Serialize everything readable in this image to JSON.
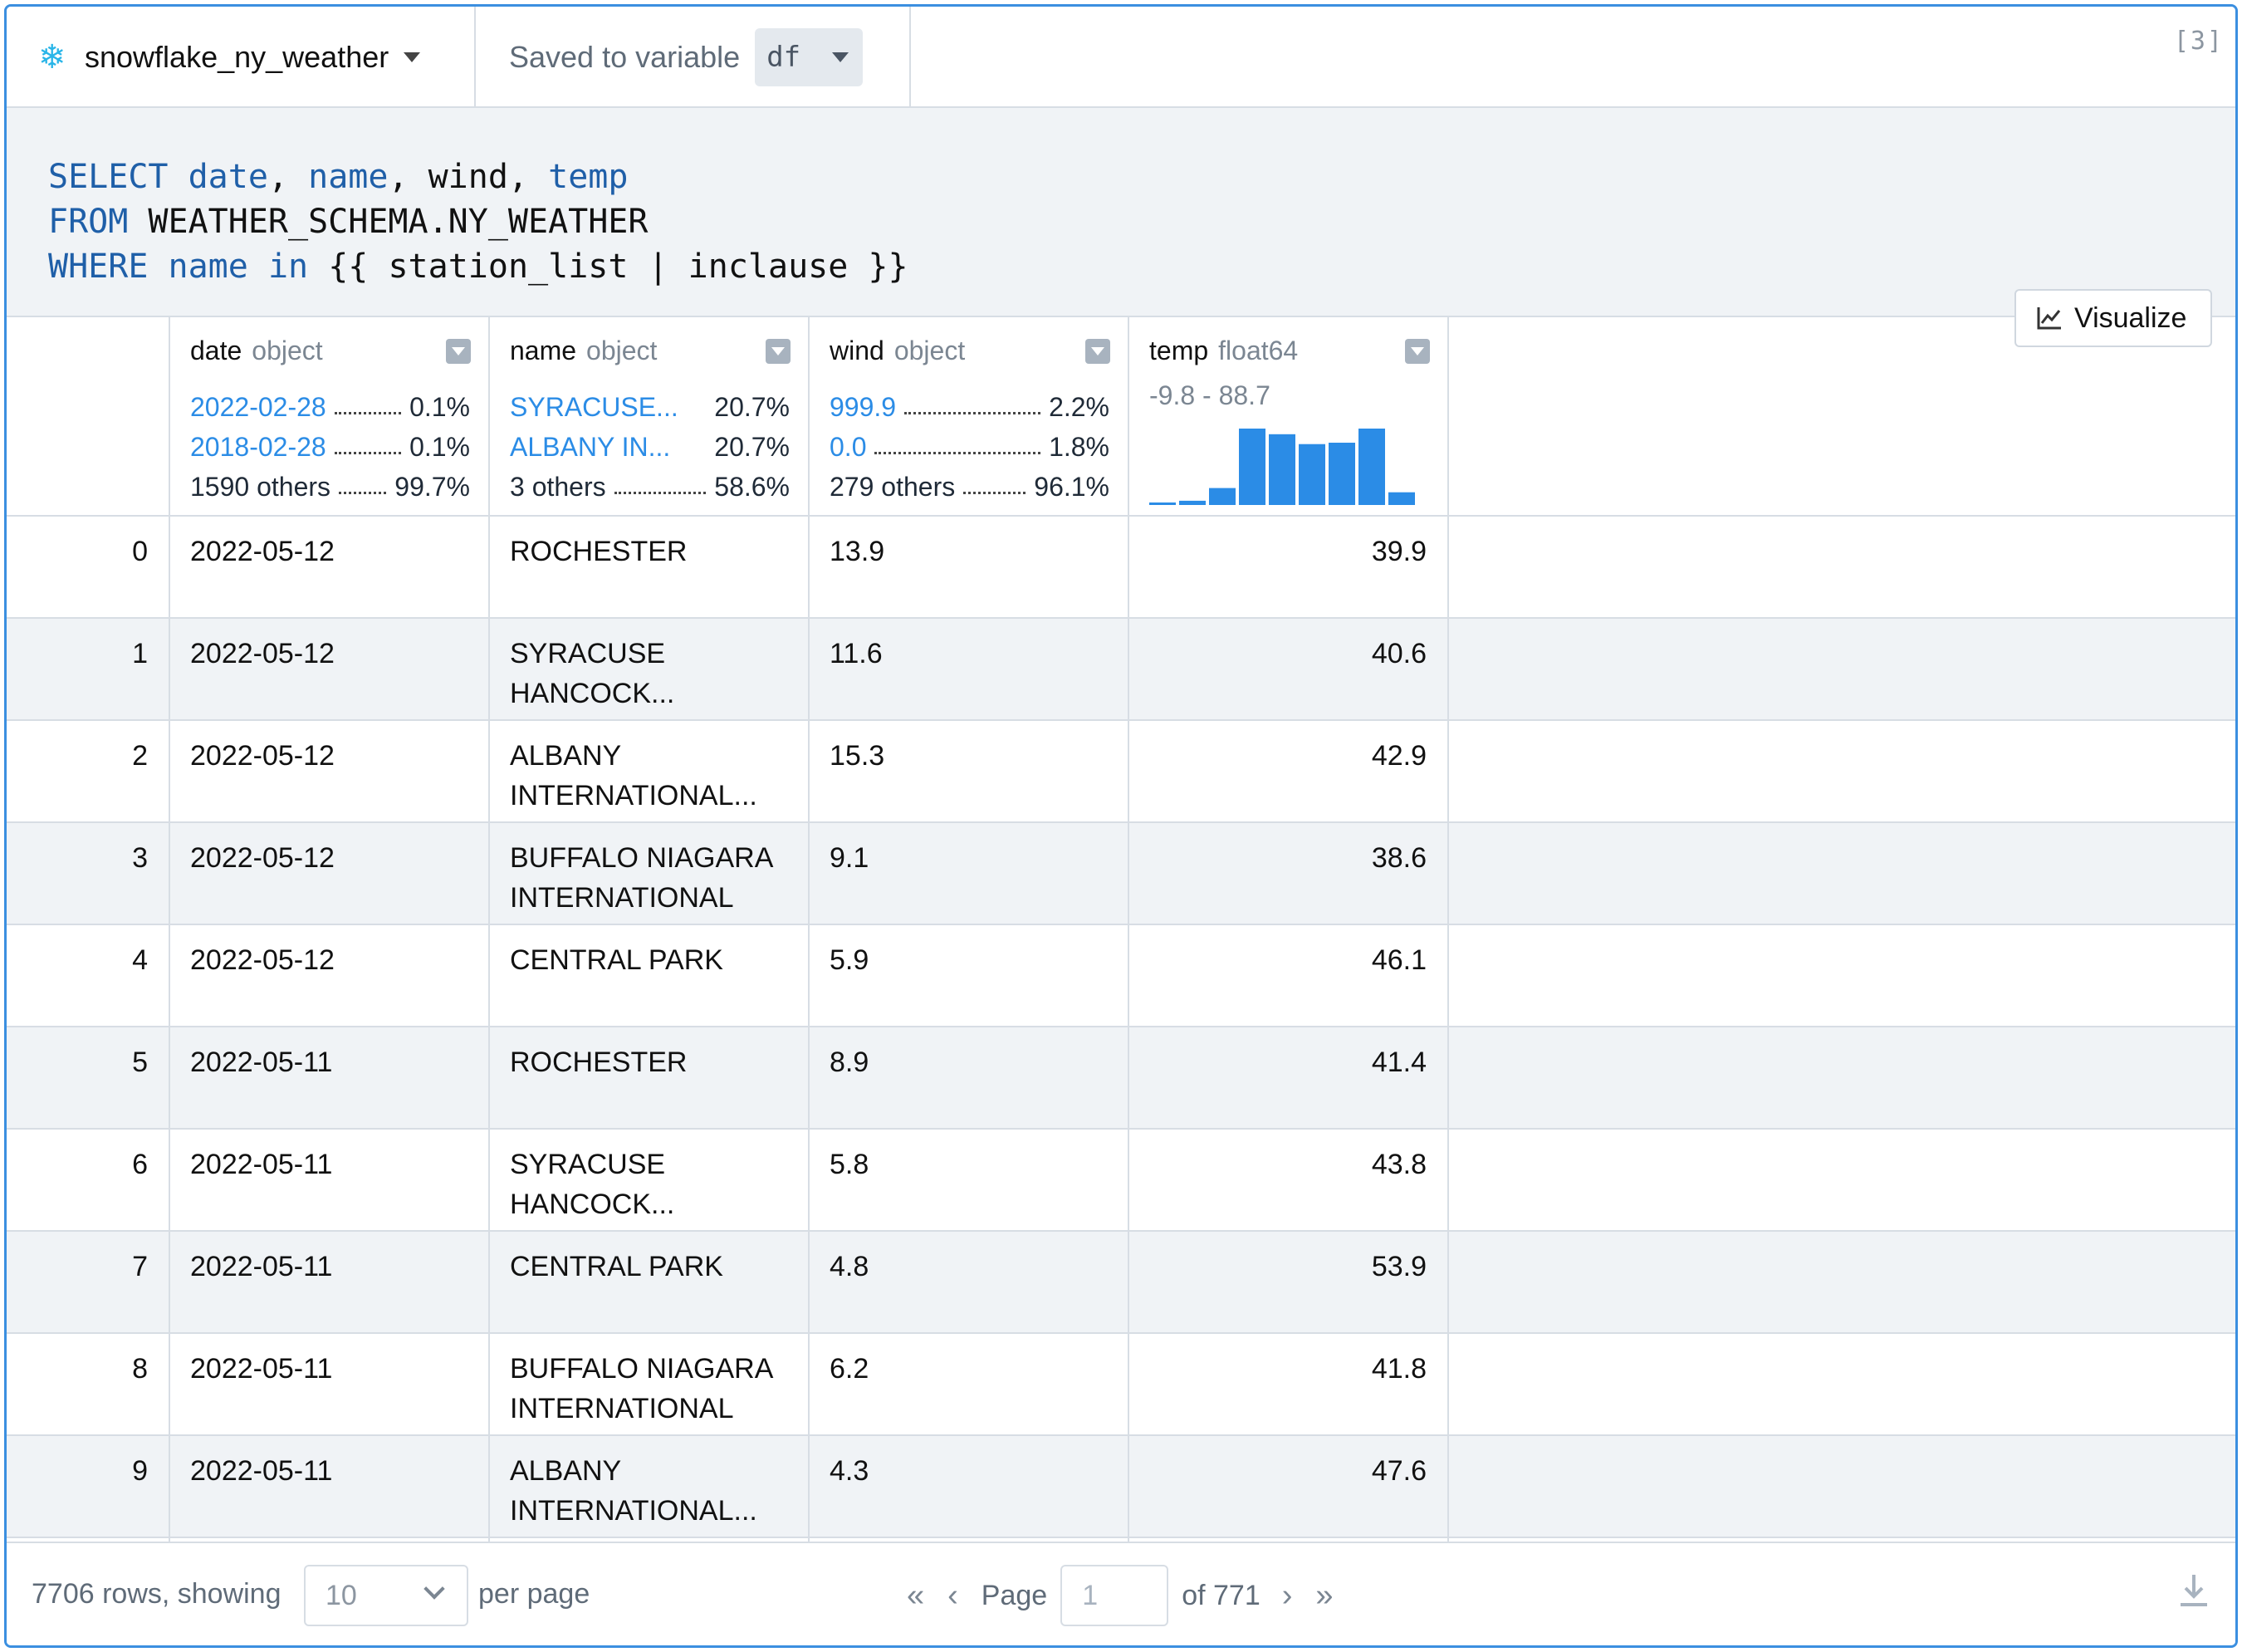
{
  "toolbar": {
    "connection_name": "snowflake_ny_weather",
    "saved_label": "Saved to variable",
    "variable": "df",
    "exec_count": "[3]"
  },
  "sql": {
    "line1": {
      "k1": "SELECT",
      "c1": "date",
      "sep1": ",",
      "c2": "name",
      "sep2": ", wind,",
      "c3": "temp"
    },
    "line2": {
      "k1": "FROM",
      "rest": "WEATHER_SCHEMA.NY_WEATHER"
    },
    "line3": {
      "k1": "WHERE",
      "c1": "name",
      "k2": "in",
      "rest": "{{ station_list | inclause }}"
    }
  },
  "visualize_label": "Visualize",
  "columns": [
    {
      "name": "date",
      "dtype": "object",
      "stats": [
        {
          "value": "2022-02-28",
          "pct": "0.1%",
          "link": true
        },
        {
          "value": "2018-02-28",
          "pct": "0.1%",
          "link": true
        },
        {
          "value": "1590 others",
          "pct": "99.7%",
          "link": false
        }
      ]
    },
    {
      "name": "name",
      "dtype": "object",
      "stats": [
        {
          "value": "SYRACUSE...",
          "pct": "20.7%",
          "link": true
        },
        {
          "value": "ALBANY IN...",
          "pct": "20.7%",
          "link": true
        },
        {
          "value": "3 others",
          "pct": "58.6%",
          "link": false
        }
      ]
    },
    {
      "name": "wind",
      "dtype": "object",
      "stats": [
        {
          "value": "999.9",
          "pct": "2.2%",
          "link": true
        },
        {
          "value": "0.0",
          "pct": "1.8%",
          "link": true
        },
        {
          "value": "279 others",
          "pct": "96.1%",
          "link": false
        }
      ]
    },
    {
      "name": "temp",
      "dtype": "float64",
      "range": "-9.8 - 88.7",
      "histogram": [
        1,
        3,
        12,
        54,
        50,
        43,
        44,
        54,
        9
      ],
      "histogram_color": "#2b8ce6"
    }
  ],
  "rows": [
    {
      "idx": "0",
      "date": "2022-05-12",
      "name1": "ROCHESTER",
      "name2": "",
      "wind": "13.9",
      "temp": "39.9"
    },
    {
      "idx": "1",
      "date": "2022-05-12",
      "name1": "SYRACUSE",
      "name2": "HANCOCK...",
      "wind": "11.6",
      "temp": "40.6"
    },
    {
      "idx": "2",
      "date": "2022-05-12",
      "name1": "ALBANY",
      "name2": "INTERNATIONAL...",
      "wind": "15.3",
      "temp": "42.9"
    },
    {
      "idx": "3",
      "date": "2022-05-12",
      "name1": "BUFFALO NIAGARA",
      "name2": "INTERNATIONAL",
      "wind": "9.1",
      "temp": "38.6"
    },
    {
      "idx": "4",
      "date": "2022-05-12",
      "name1": "CENTRAL PARK",
      "name2": "",
      "wind": "5.9",
      "temp": "46.1"
    },
    {
      "idx": "5",
      "date": "2022-05-11",
      "name1": "ROCHESTER",
      "name2": "",
      "wind": "8.9",
      "temp": "41.4"
    },
    {
      "idx": "6",
      "date": "2022-05-11",
      "name1": "SYRACUSE",
      "name2": "HANCOCK...",
      "wind": "5.8",
      "temp": "43.8"
    },
    {
      "idx": "7",
      "date": "2022-05-11",
      "name1": "CENTRAL PARK",
      "name2": "",
      "wind": "4.8",
      "temp": "53.9"
    },
    {
      "idx": "8",
      "date": "2022-05-11",
      "name1": "BUFFALO NIAGARA",
      "name2": "INTERNATIONAL",
      "wind": "6.2",
      "temp": "41.8"
    },
    {
      "idx": "9",
      "date": "2022-05-11",
      "name1": "ALBANY",
      "name2": "INTERNATIONAL...",
      "wind": "4.3",
      "temp": "47.6"
    }
  ],
  "footer": {
    "rows_text": "7706 rows, showing",
    "per_page_value": "10",
    "per_page_label": "per page",
    "page_label": "Page",
    "page_value": "1",
    "of_pages": "of 771"
  },
  "colors": {
    "accent": "#3b8fe0",
    "link": "#2b8ce6",
    "keyword": "#1f5fa8",
    "snowflake": "#29b5e8"
  }
}
